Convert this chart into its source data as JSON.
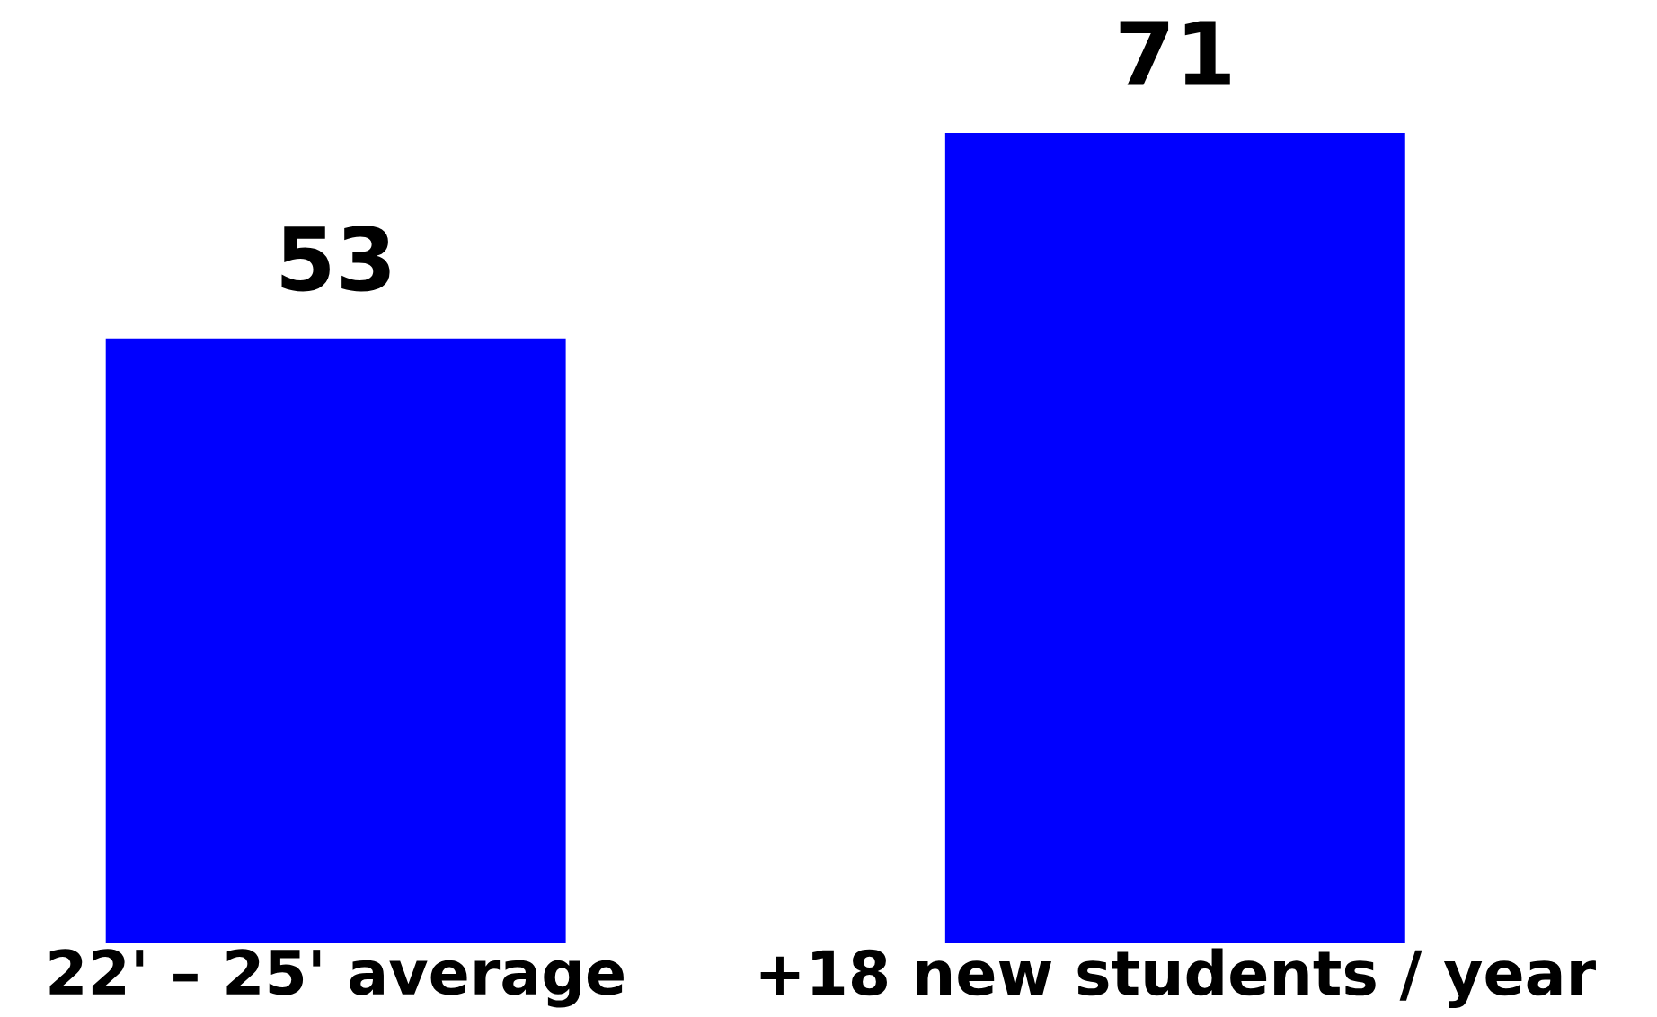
{
  "chart_data": {
    "type": "bar",
    "categories": [
      "22' – 25' average",
      "+18 new students / year"
    ],
    "values": [
      53,
      71
    ],
    "color": "#0000ff",
    "data_labels": true,
    "grid": false,
    "legend": false,
    "tick_labels": "x"
  }
}
